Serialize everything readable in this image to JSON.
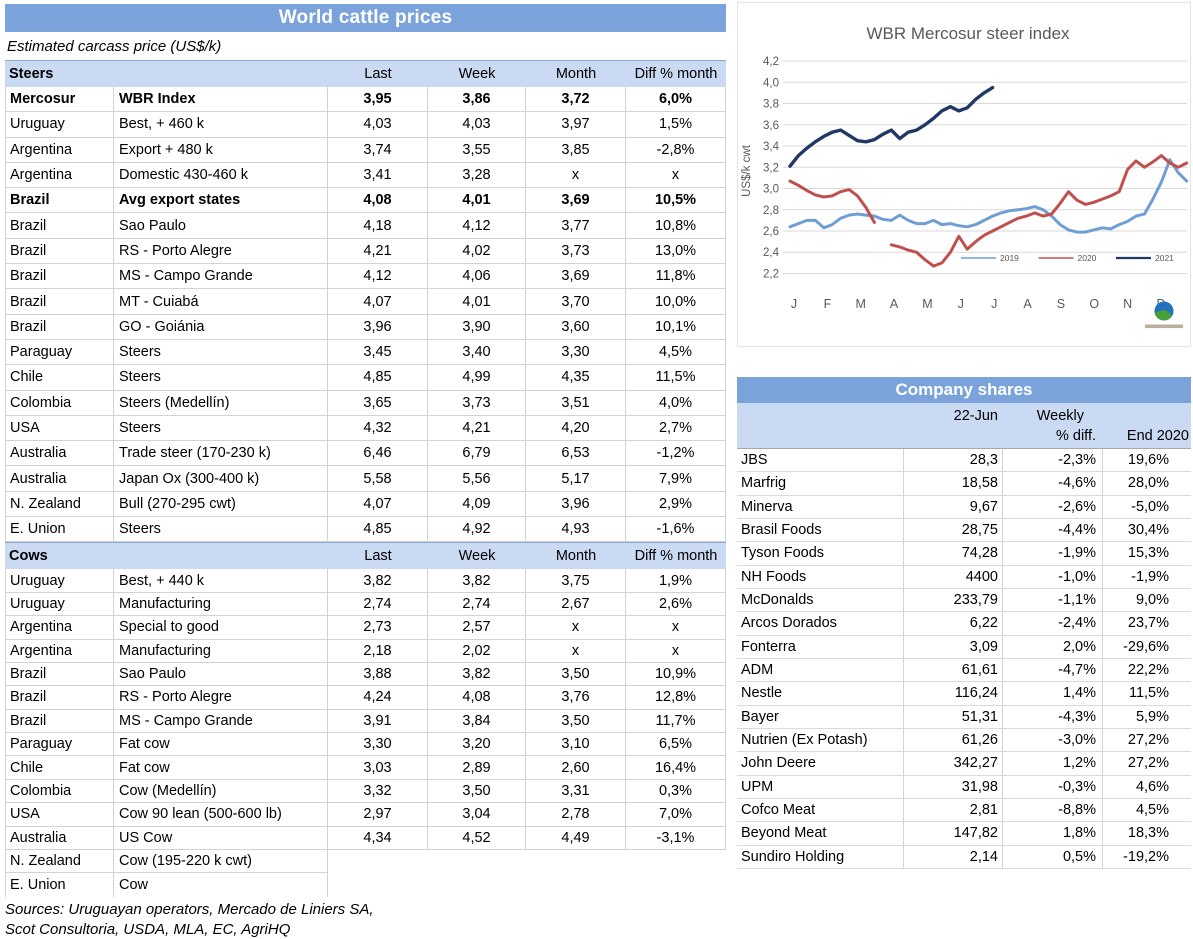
{
  "colors": {
    "title_bar": "#7ba3db",
    "section_header": "#c9daf2",
    "chart_text": "#595959",
    "gridline": "#d9d9d9"
  },
  "cattle_table": {
    "title": "World cattle prices",
    "subtitle": "Estimated carcass price (US$/k)",
    "columns": [
      "Last",
      "Week",
      "Month",
      "Diff % month"
    ],
    "sections": [
      {
        "name": "Steers",
        "rows": [
          [
            "Mercosur",
            "WBR Index",
            "3,95",
            "3,86",
            "3,72",
            "6,0%",
            true
          ],
          [
            "Uruguay",
            "Best, + 460 k",
            "4,03",
            "4,03",
            "3,97",
            "1,5%"
          ],
          [
            "Argentina",
            "Export + 480 k",
            "3,74",
            "3,55",
            "3,85",
            "-2,8%"
          ],
          [
            "Argentina",
            "Domestic 430-460 k",
            "3,41",
            "3,28",
            "x",
            "x"
          ],
          [
            "Brazil",
            "Avg export states",
            "4,08",
            "4,01",
            "3,69",
            "10,5%",
            true
          ],
          [
            "Brazil",
            "Sao Paulo",
            "4,18",
            "4,12",
            "3,77",
            "10,8%"
          ],
          [
            "Brazil",
            "RS - Porto Alegre",
            "4,21",
            "4,02",
            "3,73",
            "13,0%"
          ],
          [
            "Brazil",
            "MS - Campo Grande",
            "4,12",
            "4,06",
            "3,69",
            "11,8%"
          ],
          [
            "Brazil",
            "MT - Cuiabá",
            "4,07",
            "4,01",
            "3,70",
            "10,0%"
          ],
          [
            "Brazil",
            "GO - Goiánia",
            "3,96",
            "3,90",
            "3,60",
            "10,1%"
          ],
          [
            "Paraguay",
            "Steers",
            "3,45",
            "3,40",
            "3,30",
            "4,5%"
          ],
          [
            "Chile",
            "Steers",
            "4,85",
            "4,99",
            "4,35",
            "11,5%"
          ],
          [
            "Colombia",
            "Steers (Medellín)",
            "3,65",
            "3,73",
            "3,51",
            "4,0%"
          ],
          [
            "USA",
            "Steers",
            "4,32",
            "4,21",
            "4,20",
            "2,7%"
          ],
          [
            "Australia",
            "Trade steer (170-230 k)",
            "6,46",
            "6,79",
            "6,53",
            "-1,2%"
          ],
          [
            "Australia",
            "Japan Ox (300-400 k)",
            "5,58",
            "5,56",
            "5,17",
            "7,9%"
          ],
          [
            "N. Zealand",
            "Bull (270-295 cwt)",
            "4,07",
            "4,09",
            "3,96",
            "2,9%"
          ],
          [
            "E. Union",
            "Steers",
            "4,85",
            "4,92",
            "4,93",
            "-1,6%"
          ]
        ]
      },
      {
        "name": "Cows",
        "rows": [
          [
            "Uruguay",
            "Best, + 440 k",
            "3,82",
            "3,82",
            "3,75",
            "1,9%"
          ],
          [
            "Uruguay",
            "Manufacturing",
            "2,74",
            "2,74",
            "2,67",
            "2,6%"
          ],
          [
            "Argentina",
            "Special to good",
            "2,73",
            "2,57",
            "x",
            "x"
          ],
          [
            "Argentina",
            "Manufacturing",
            "2,18",
            "2,02",
            "x",
            "x"
          ],
          [
            "Brazil",
            "Sao Paulo",
            "3,88",
            "3,82",
            "3,50",
            "10,9%"
          ],
          [
            "Brazil",
            "RS - Porto Alegre",
            "4,24",
            "4,08",
            "3,76",
            "12,8%"
          ],
          [
            "Brazil",
            "MS - Campo Grande",
            "3,91",
            "3,84",
            "3,50",
            "11,7%"
          ],
          [
            "Paraguay",
            "Fat cow",
            "3,30",
            "3,20",
            "3,10",
            "6,5%"
          ],
          [
            "Chile",
            "Fat cow",
            "3,03",
            "2,89",
            "2,60",
            "16,4%"
          ],
          [
            "Colombia",
            "Cow (Medellín)",
            "3,32",
            "3,50",
            "3,31",
            "0,3%"
          ],
          [
            "USA",
            "Cow 90 lean (500-600 lb)",
            "2,97",
            "3,04",
            "2,78",
            "7,0%"
          ],
          [
            "Australia",
            "US Cow",
            "4,34",
            "4,52",
            "4,49",
            "-3,1%"
          ],
          [
            "N. Zealand",
            "Cow (195-220 k cwt)",
            "",
            "",
            "",
            ""
          ],
          [
            "E. Union",
            "Cow",
            "",
            "",
            "",
            ""
          ]
        ]
      }
    ],
    "sources": [
      "Sources: Uruguayan operators, Mercado de Liniers SA,",
      "Scot Consultoria, USDA, MLA, EC, AgriHQ"
    ]
  },
  "chart_data": {
    "type": "line",
    "title": "WBR Mercosur steer index",
    "xlabel": "",
    "ylabel": "US$/k cwt",
    "ylim": [
      2.2,
      4.2
    ],
    "ytick_step": 0.2,
    "grid": true,
    "legend_position": "inside-bottom-right",
    "x_categories": [
      "J",
      "F",
      "M",
      "A",
      "M",
      "J",
      "J",
      "A",
      "S",
      "O",
      "N",
      "D"
    ],
    "points_per_month": 4,
    "series": [
      {
        "name": "2019",
        "color": "#6f9ed6",
        "values": [
          2.64,
          2.67,
          2.7,
          2.7,
          2.63,
          2.66,
          2.72,
          2.75,
          2.76,
          2.75,
          2.74,
          2.71,
          2.7,
          2.75,
          2.7,
          2.67,
          2.67,
          2.7,
          2.66,
          2.67,
          2.65,
          2.64,
          2.66,
          2.7,
          2.74,
          2.77,
          2.79,
          2.8,
          2.81,
          2.83,
          2.8,
          2.74,
          2.66,
          2.61,
          2.59,
          2.59,
          2.61,
          2.63,
          2.62,
          2.66,
          2.69,
          2.74,
          2.76,
          2.9,
          3.06,
          3.27,
          3.15,
          3.07
        ]
      },
      {
        "name": "2020",
        "color": "#c0504d",
        "values": [
          3.07,
          3.03,
          2.98,
          2.94,
          2.92,
          2.93,
          2.97,
          2.99,
          2.93,
          2.82,
          2.68,
          null,
          2.47,
          2.45,
          2.42,
          2.4,
          2.33,
          2.27,
          2.3,
          2.4,
          2.55,
          2.43,
          2.5,
          2.56,
          2.6,
          2.64,
          2.68,
          2.72,
          2.74,
          2.77,
          2.74,
          2.76,
          2.86,
          2.97,
          2.89,
          2.85,
          2.87,
          2.9,
          2.93,
          2.97,
          3.18,
          3.26,
          3.2,
          3.25,
          3.31,
          3.24,
          3.2,
          3.24
        ]
      },
      {
        "name": "2021",
        "color": "#1f3864",
        "values": [
          3.21,
          3.31,
          3.38,
          3.44,
          3.49,
          3.53,
          3.55,
          3.5,
          3.45,
          3.44,
          3.46,
          3.51,
          3.55,
          3.47,
          3.53,
          3.55,
          3.6,
          3.66,
          3.73,
          3.77,
          3.73,
          3.76,
          3.84,
          3.9,
          3.95
        ]
      }
    ]
  },
  "company_table": {
    "title": "Company shares",
    "headers": {
      "date": "22-Jun",
      "weekly_line1": "Weekly",
      "weekly_line2": "% diff.",
      "end": "End 2020"
    },
    "rows": [
      [
        "JBS",
        "28,3",
        "-2,3%",
        "19,6%"
      ],
      [
        "Marfrig",
        "18,58",
        "-4,6%",
        "28,0%"
      ],
      [
        "Minerva",
        "9,67",
        "-2,6%",
        "-5,0%"
      ],
      [
        "Brasil Foods",
        "28,75",
        "-4,4%",
        "30,4%"
      ],
      [
        "Tyson Foods",
        "74,28",
        "-1,9%",
        "15,3%"
      ],
      [
        "NH Foods",
        "4400",
        "-1,0%",
        "-1,9%"
      ],
      [
        "McDonalds",
        "233,79",
        "-1,1%",
        "9,0%"
      ],
      [
        "Arcos Dorados",
        "6,22",
        "-2,4%",
        "23,7%"
      ],
      [
        "Fonterra",
        "3,09",
        "2,0%",
        "-29,6%"
      ],
      [
        "ADM",
        "61,61",
        "-4,7%",
        "22,2%"
      ],
      [
        "Nestle",
        "116,24",
        "1,4%",
        "11,5%"
      ],
      [
        "Bayer",
        "51,31",
        "-4,3%",
        "5,9%"
      ],
      [
        "Nutrien (Ex Potash)",
        "61,26",
        "-3,0%",
        "27,2%"
      ],
      [
        "John Deere",
        "342,27",
        "1,2%",
        "27,2%"
      ],
      [
        "UPM",
        "31,98",
        "-0,3%",
        "4,6%"
      ],
      [
        "Cofco Meat",
        "2,81",
        "-8,8%",
        "4,5%"
      ],
      [
        "Beyond Meat",
        "147,82",
        "1,8%",
        "18,3%"
      ],
      [
        "Sundiro Holding",
        "2,14",
        "0,5%",
        "-19,2%"
      ]
    ]
  }
}
